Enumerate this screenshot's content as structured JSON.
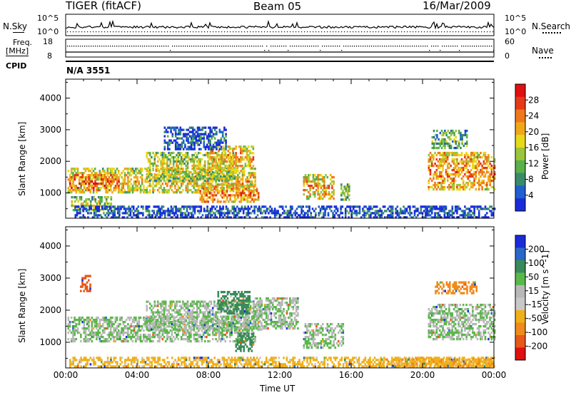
{
  "header": {
    "title": "TIGER (fitACF)",
    "beam": "Beam 05",
    "date": "16/Mar/2009"
  },
  "top_panels": {
    "nsky_label": "N.Sky",
    "nsky_tick_hi": "10^5",
    "nsky_tick_lo": "10^0",
    "nsearch_label": "N.Search",
    "nsearch_tick_hi": "10^5",
    "nsearch_tick_lo": "10^0",
    "freq_label_1": "Freq.",
    "freq_label_2": "[MHz]",
    "freq_tick_hi": "18",
    "freq_tick_lo": "8",
    "nave_label": "Nave",
    "nave_tick_hi": "60",
    "nave_tick_lo": "0",
    "cpid_label": "CPID",
    "cpid_value": "N/A 3551"
  },
  "chart_data": [
    {
      "type": "heatmap",
      "name": "power",
      "ylabel": "Slant Range [km]",
      "ylim": [
        200,
        4600
      ],
      "yticks": [
        1000,
        2000,
        3000,
        4000
      ],
      "xlim": [
        0,
        24
      ],
      "colorbar": {
        "label": "Power [dB]",
        "ticks": [
          4,
          8,
          12,
          16,
          20,
          24,
          28
        ],
        "range": [
          0,
          32
        ],
        "colors": [
          "#1a2cd9",
          "#1f5fd0",
          "#3a8a6a",
          "#5ab04a",
          "#9ac63a",
          "#e8d81a",
          "#f0a81a",
          "#f0781a",
          "#e8381a",
          "#e01010"
        ]
      },
      "regions": [
        {
          "t0": 0.1,
          "t1": 10.6,
          "r0": 1000,
          "r1": 1800,
          "level": 20
        },
        {
          "t0": 0.2,
          "t1": 3.0,
          "r0": 1100,
          "r1": 1600,
          "level": 26
        },
        {
          "t0": 4.5,
          "t1": 9.5,
          "r0": 1400,
          "r1": 2300,
          "level": 17
        },
        {
          "t0": 8.0,
          "t1": 10.5,
          "r0": 1800,
          "r1": 2500,
          "level": 22
        },
        {
          "t0": 7.5,
          "t1": 10.8,
          "r0": 700,
          "r1": 1300,
          "level": 24
        },
        {
          "t0": 0.3,
          "t1": 2.5,
          "r0": 450,
          "r1": 900,
          "level": 16
        },
        {
          "t0": 5.5,
          "t1": 9.0,
          "r0": 2400,
          "r1": 3100,
          "level": 6
        },
        {
          "t0": 13.3,
          "t1": 15.0,
          "r0": 800,
          "r1": 1600,
          "level": 22
        },
        {
          "t0": 15.4,
          "t1": 15.9,
          "r0": 800,
          "r1": 1300,
          "level": 16
        },
        {
          "t0": 20.3,
          "t1": 24.0,
          "r0": 1100,
          "r1": 2300,
          "level": 24
        },
        {
          "t0": 20.5,
          "t1": 22.5,
          "r0": 2400,
          "r1": 3000,
          "level": 13
        },
        {
          "t0": 0.5,
          "t1": 24.0,
          "r0": 250,
          "r1": 600,
          "level": 6
        }
      ]
    },
    {
      "type": "heatmap",
      "name": "velocity",
      "ylabel": "Slant Range [km]",
      "ylim": [
        200,
        4600
      ],
      "yticks": [
        1000,
        2000,
        3000,
        4000
      ],
      "xlim": [
        0,
        24
      ],
      "xticks": [
        "00:00",
        "04:00",
        "08:00",
        "12:00",
        "16:00",
        "20:00",
        "00:00"
      ],
      "xlabel": "Time UT",
      "colorbar": {
        "label": "Velocity [m s^-1]",
        "ticks": [
          "200",
          "100",
          "50",
          "15",
          "-15",
          "-50",
          "-100",
          "-200"
        ],
        "colors": [
          "#1a2cd9",
          "#2a68c8",
          "#3a8a5a",
          "#5ab84a",
          "#b8b8b8",
          "#c8c8c8",
          "#f0b01a",
          "#f08a1a",
          "#e8581a",
          "#e01010"
        ]
      },
      "regions": [
        {
          "t0": 0.1,
          "t1": 10.6,
          "r0": 1000,
          "r1": 1800,
          "level": 0
        },
        {
          "t0": 4.5,
          "t1": 11.0,
          "r0": 1400,
          "r1": 2300,
          "level": 0
        },
        {
          "t0": 8.5,
          "t1": 10.3,
          "r0": 1900,
          "r1": 2600,
          "level": 45
        },
        {
          "t0": 9.5,
          "t1": 10.5,
          "r0": 700,
          "r1": 1300,
          "level": 60
        },
        {
          "t0": 10.5,
          "t1": 13.0,
          "r0": 1400,
          "r1": 2400,
          "level": 0
        },
        {
          "t0": 13.3,
          "t1": 15.5,
          "r0": 800,
          "r1": 1600,
          "level": 0
        },
        {
          "t0": 0.2,
          "t1": 24.0,
          "r0": 250,
          "r1": 550,
          "level": -45
        },
        {
          "t0": 17.5,
          "t1": 24.0,
          "r0": 250,
          "r1": 500,
          "level": -70
        },
        {
          "t0": 20.3,
          "t1": 24.0,
          "r0": 1100,
          "r1": 2200,
          "level": 0
        },
        {
          "t0": 20.6,
          "t1": 23.0,
          "r0": 2500,
          "r1": 2900,
          "level": -120
        },
        {
          "t0": 0.8,
          "t1": 1.4,
          "r0": 2600,
          "r1": 3100,
          "level": -180
        }
      ]
    }
  ]
}
